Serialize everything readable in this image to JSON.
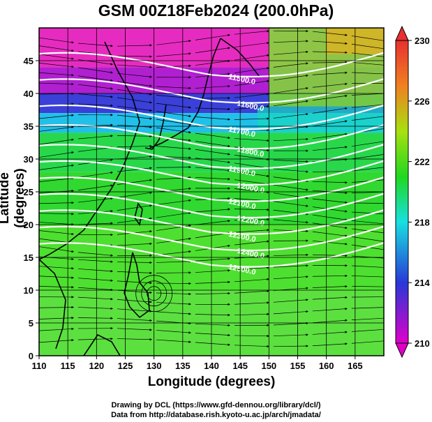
{
  "title": "GSM 00Z18Feb2024 (200.0hPa)",
  "axes": {
    "xlabel": "Longitude (degrees)",
    "ylabel": "Latitude  (degrees)",
    "x_ticks": [
      "110",
      "115",
      "120",
      "125",
      "130",
      "135",
      "140",
      "145",
      "150",
      "155",
      "160",
      "165"
    ],
    "y_ticks": [
      "0",
      "5",
      "10",
      "15",
      "20",
      "25",
      "30",
      "35",
      "40",
      "45"
    ],
    "xlim": [
      110,
      170
    ],
    "ylim": [
      0,
      50
    ]
  },
  "colorbar": {
    "ticks": [
      "230",
      "226",
      "222",
      "218",
      "214",
      "210"
    ],
    "range": [
      210,
      230
    ],
    "colors": [
      "#e000c8",
      "#2838d8",
      "#18e0e0",
      "#20d820",
      "#a8e010",
      "#f08020",
      "#e83030"
    ]
  },
  "contours": {
    "color": "#ffffff",
    "levels": [
      {
        "label": "11500.0",
        "lat": 44
      },
      {
        "label": "11600.0",
        "lat": 40
      },
      {
        "label": "11700.0",
        "lat": 36
      },
      {
        "label": "11800.0",
        "lat": 33
      },
      {
        "label": "11900.0",
        "lat": 30
      },
      {
        "label": "12000.0",
        "lat": 27.5
      },
      {
        "label": "12100.0",
        "lat": 25
      },
      {
        "label": "12200.0",
        "lat": 22.5
      },
      {
        "label": "12300.0",
        "lat": 20
      },
      {
        "label": "12400.0",
        "lat": 17.5
      },
      {
        "label": "12500.0",
        "lat": 15
      }
    ]
  },
  "credits": {
    "line1": "Drawing by DCL (https://www.gfd-dennou.org/library/dcl/)",
    "line2": "Data from http://database.rish.kyoto-u.ac.jp/arch/jmadata/"
  }
}
